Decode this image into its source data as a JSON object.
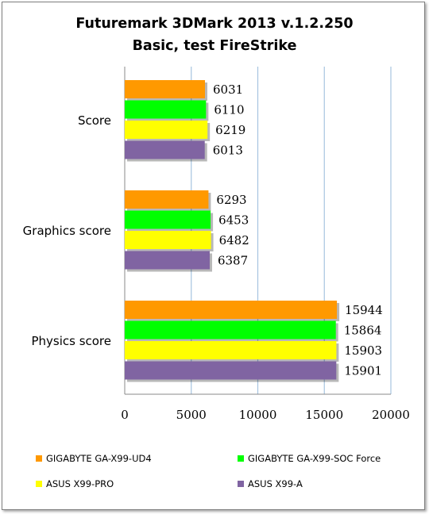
{
  "chart_data": {
    "type": "bar",
    "orientation": "horizontal",
    "title": "Futuremark 3DMark 2013 v.1.2.250",
    "subtitle": "Basic, test FireStrike",
    "categories": [
      "Score",
      "Graphics score",
      "Physics score"
    ],
    "series": [
      {
        "name": "GIGABYTE GA-X99-UD4",
        "color": "#ff9900",
        "values": [
          6031,
          6293,
          15944
        ]
      },
      {
        "name": "GIGABYTE GA-X99-SOC Force",
        "color": "#00ff00",
        "values": [
          6110,
          6453,
          15864
        ]
      },
      {
        "name": "ASUS X99-PRO",
        "color": "#ffff00",
        "values": [
          6219,
          6482,
          15903
        ]
      },
      {
        "name": "ASUS X99-A",
        "color": "#8064a2",
        "values": [
          6013,
          6387,
          15901
        ]
      }
    ],
    "xlim": [
      0,
      20000
    ],
    "xticks": [
      0,
      5000,
      10000,
      15000,
      20000
    ],
    "grid": true,
    "legend_position": "bottom"
  }
}
